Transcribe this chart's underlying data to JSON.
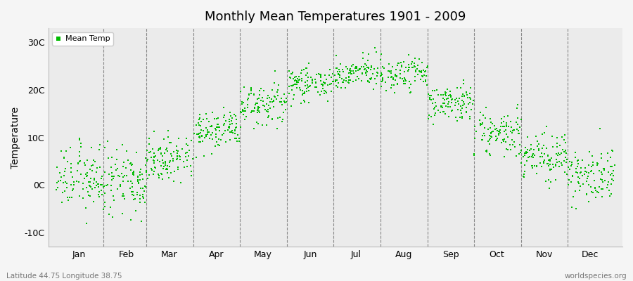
{
  "title": "Monthly Mean Temperatures 1901 - 2009",
  "ylabel": "Temperature",
  "subtitle_left": "Latitude 44.75 Longitude 38.75",
  "subtitle_right": "worldspecies.org",
  "dot_color": "#00bb00",
  "background_color": "#ebebeb",
  "yticks": [
    -10,
    0,
    10,
    20,
    30
  ],
  "ytick_labels": [
    "-10C",
    "0C",
    "10C",
    "20C",
    "30C"
  ],
  "ylim": [
    -13,
    33
  ],
  "months": [
    "Jan",
    "Feb",
    "Mar",
    "Apr",
    "May",
    "Jun",
    "Jul",
    "Aug",
    "Sep",
    "Oct",
    "Nov",
    "Dec"
  ],
  "month_centers_day": [
    15,
    46,
    74,
    105,
    135,
    166,
    196,
    227,
    258,
    288,
    319,
    349
  ],
  "month_mean_temps": [
    1.5,
    1.2,
    5.5,
    11.5,
    17.0,
    21.5,
    23.5,
    23.0,
    17.5,
    11.0,
    6.0,
    2.5
  ],
  "month_std_temps": [
    3.2,
    3.5,
    2.5,
    2.0,
    2.0,
    1.8,
    1.8,
    1.8,
    2.0,
    2.5,
    2.5,
    2.8
  ],
  "month_label_days": [
    15,
    46,
    74,
    105,
    135,
    166,
    196,
    227,
    258,
    288,
    319,
    349
  ],
  "month_boundary_days": [
    31,
    59,
    90,
    120,
    151,
    181,
    212,
    243,
    273,
    304,
    334
  ],
  "n_years": 109,
  "legend_label": "Mean Temp",
  "marker_size": 4,
  "xlim_days": [
    -5,
    370
  ]
}
